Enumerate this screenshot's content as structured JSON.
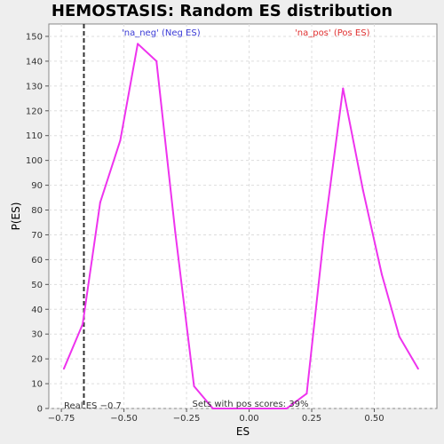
{
  "chart_data": {
    "type": "line",
    "title": "HEMOSTASIS: Random ES distribution",
    "xlabel": "ES",
    "ylabel": "P(ES)",
    "xlim": [
      -0.8,
      0.75
    ],
    "ylim": [
      0,
      155
    ],
    "xticks": [
      -0.75,
      -0.5,
      -0.25,
      0.0,
      0.25,
      0.5
    ],
    "xtick_labels": [
      "−0.75",
      "−0.50",
      "−0.25",
      "0.00",
      "0.25",
      "0.50"
    ],
    "yticks": [
      0,
      10,
      20,
      30,
      40,
      50,
      60,
      70,
      80,
      90,
      100,
      110,
      120,
      130,
      140,
      150
    ],
    "grid": true,
    "series_color": "#ee33ee",
    "series": [
      {
        "x": [
          -0.74,
          -0.665,
          -0.595,
          -0.515,
          -0.445,
          -0.37,
          -0.295,
          -0.22,
          -0.145,
          -0.07,
          0.0,
          0.07,
          0.15,
          0.23,
          0.3,
          0.375,
          0.455,
          0.53,
          0.6,
          0.675
        ],
        "y": [
          16,
          34,
          83,
          108,
          147,
          140,
          71,
          9,
          0,
          0,
          0,
          0,
          0,
          6,
          71,
          129,
          88,
          54,
          29,
          16
        ]
      }
    ],
    "real_es": {
      "value": -0.66,
      "label": "Real ES −0.7"
    },
    "legend": {
      "neg": "'na_neg' (Neg ES)",
      "pos": "'na_pos' (Pos ES)",
      "neg_color": "#3a3ad6",
      "pos_color": "#e03030"
    },
    "annotation": "Sets with pos scores: 39%"
  }
}
